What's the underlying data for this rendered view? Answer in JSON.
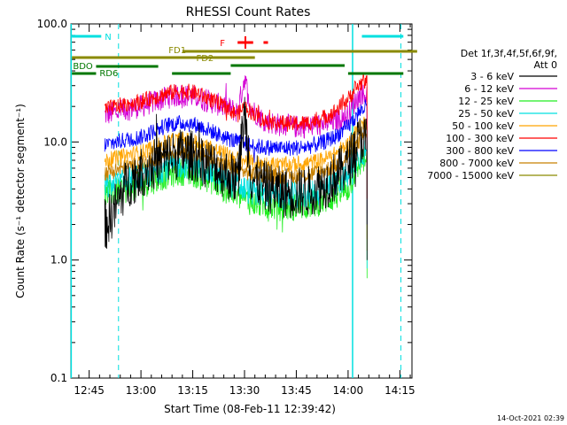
{
  "chart_data": {
    "type": "line",
    "title": "RHESSI Count Rates",
    "xlabel": "Start Time (08-Feb-11 12:39:42)",
    "ylabel": "Count Rate (s⁻¹ detector segment⁻¹)",
    "yscale": "log",
    "ylim": [
      0.1,
      100
    ],
    "y_ticks": [
      "0.1",
      "1.0",
      "10.0",
      "100.0"
    ],
    "xlim_minutes": [
      39.7,
      138.5
    ],
    "x_ticks": [
      {
        "label": "12:45",
        "min": 45
      },
      {
        "label": "13:00",
        "min": 60
      },
      {
        "label": "13:15",
        "min": 75
      },
      {
        "label": "13:30",
        "min": 90
      },
      {
        "label": "13:45",
        "min": 105
      },
      {
        "label": "14:00",
        "min": 120
      },
      {
        "label": "14:15",
        "min": 135
      }
    ],
    "data_window_minutes": [
      49.5,
      125.5
    ],
    "legend": {
      "title_lines": [
        "Det 1f,3f,4f,5f,6f,9f,",
        "Att 0"
      ],
      "placement": "outside-right"
    },
    "series": [
      {
        "name": "3 - 6 keV",
        "color": "#000000",
        "x": [
          50,
          53,
          56,
          60,
          64,
          68,
          72,
          76,
          80,
          84,
          88,
          90,
          92,
          96,
          100,
          104,
          108,
          112,
          116,
          120,
          122,
          124,
          125.5
        ],
        "y": [
          2.0,
          3.0,
          4.5,
          5.5,
          6.5,
          7.5,
          8.0,
          7.5,
          6.5,
          5.5,
          4.8,
          18,
          5.0,
          4.2,
          3.8,
          3.7,
          3.8,
          4.2,
          5.0,
          6.5,
          9.0,
          11.0,
          10.0
        ]
      },
      {
        "name": "6 - 12 keV",
        "color": "#d400d4",
        "x": [
          50,
          53,
          56,
          60,
          64,
          68,
          72,
          76,
          80,
          84,
          88,
          90,
          92,
          96,
          100,
          104,
          108,
          112,
          116,
          120,
          122,
          124,
          125.5
        ],
        "y": [
          17,
          18,
          19,
          20,
          22,
          24,
          25,
          24,
          22,
          20,
          18,
          35,
          19,
          15,
          14,
          13.5,
          13.5,
          14,
          15,
          17,
          22,
          26,
          25
        ]
      },
      {
        "name": "12 - 25 keV",
        "color": "#22ee22",
        "x": [
          50,
          53,
          56,
          60,
          64,
          68,
          72,
          76,
          80,
          84,
          88,
          92,
          96,
          100,
          104,
          108,
          112,
          116,
          120,
          122,
          124,
          125.5
        ],
        "y": [
          3.6,
          3.8,
          4.0,
          4.3,
          4.8,
          5.3,
          5.6,
          5.3,
          4.8,
          4.0,
          3.5,
          3.1,
          2.9,
          2.8,
          2.8,
          2.9,
          3.1,
          3.4,
          4.0,
          5.5,
          7.0,
          7.0
        ]
      },
      {
        "name": "25 - 50 keV",
        "color": "#00e0e0",
        "x": [
          50,
          53,
          56,
          60,
          64,
          68,
          72,
          76,
          80,
          84,
          88,
          92,
          96,
          100,
          104,
          108,
          112,
          116,
          120,
          122,
          124,
          125.5
        ],
        "y": [
          4.2,
          4.4,
          4.7,
          5.0,
          5.6,
          6.2,
          6.5,
          6.2,
          5.6,
          4.8,
          4.2,
          3.8,
          3.6,
          3.5,
          3.5,
          3.6,
          3.8,
          4.3,
          5.2,
          6.5,
          8.0,
          8.5
        ]
      },
      {
        "name": "50 - 100 keV",
        "color": "#ffa500",
        "x": [
          50,
          53,
          56,
          60,
          64,
          68,
          72,
          76,
          80,
          84,
          88,
          92,
          96,
          100,
          104,
          108,
          112,
          116,
          120,
          122,
          124,
          125.5
        ],
        "y": [
          7.0,
          7.3,
          7.7,
          8.2,
          9.0,
          10.0,
          10.5,
          10.0,
          9.0,
          8.0,
          7.2,
          6.7,
          6.5,
          6.4,
          6.4,
          6.6,
          7.0,
          7.8,
          9.5,
          11.5,
          14.0,
          15.0
        ]
      },
      {
        "name": "100 - 300 keV",
        "color": "#ff0000",
        "x": [
          50,
          53,
          56,
          60,
          64,
          68,
          72,
          76,
          80,
          84,
          88,
          90,
          92,
          96,
          100,
          104,
          108,
          112,
          116,
          120,
          122,
          124,
          125.5
        ],
        "y": [
          19,
          20,
          21,
          22,
          24,
          26,
          27,
          26,
          23,
          20,
          17,
          20,
          18,
          15,
          14.5,
          14.2,
          14.5,
          15.5,
          18,
          23,
          28,
          32,
          33
        ]
      },
      {
        "name": "300 - 800 keV",
        "color": "#0000ff",
        "x": [
          50,
          53,
          56,
          60,
          64,
          68,
          72,
          76,
          80,
          84,
          88,
          92,
          96,
          100,
          104,
          108,
          112,
          116,
          120,
          122,
          124,
          125.5
        ],
        "y": [
          9.5,
          10.0,
          10.5,
          11.0,
          12.5,
          14.0,
          14.5,
          14.0,
          12.5,
          11.0,
          10.0,
          9.3,
          9.0,
          8.9,
          8.9,
          9.1,
          9.7,
          11.0,
          13.5,
          16.0,
          19.0,
          20.0
        ]
      },
      {
        "name": "800 - 7000 keV",
        "color": "#c88000",
        "x": [
          50,
          53,
          56,
          60,
          64,
          68,
          72,
          76,
          80,
          84,
          88,
          92,
          96,
          100,
          104,
          108,
          112,
          116,
          120,
          122,
          124,
          125.5
        ],
        "y": [
          5.5,
          5.8,
          6.1,
          6.5,
          7.2,
          8.0,
          8.4,
          8.0,
          7.2,
          6.4,
          5.8,
          5.4,
          5.2,
          5.1,
          5.1,
          5.2,
          5.6,
          6.2,
          7.5,
          9.0,
          11.0,
          12.0
        ]
      },
      {
        "name": "7000 - 15000 keV",
        "color": "#8a8a00",
        "x": [],
        "y": []
      }
    ],
    "annotations": {
      "night_segments": [
        {
          "label": "N",
          "x0": 40,
          "x1": 48.5,
          "label_at": 49.5
        },
        {
          "label": "",
          "x0": 124,
          "x1": 136,
          "label_at": null
        }
      ],
      "night_vlines_solid": [
        39.8,
        121.3
      ],
      "night_vlines_dashed": [
        53.5,
        135.3
      ],
      "flare_marks": [
        {
          "label": "F",
          "x0": 88,
          "x1": 92.5
        },
        {
          "label": "",
          "x0": 95.5,
          "x1": 96.8
        }
      ],
      "fd_segments": [
        {
          "label": "FD1",
          "x0": 40,
          "x1": 93,
          "label_at": 68
        },
        {
          "label": "FD2",
          "x0": 72,
          "x1": 140,
          "label_at": 76
        }
      ],
      "rd_segments": [
        {
          "label": "RD6",
          "x0": 47,
          "x1": 65,
          "label_at": 48
        },
        {
          "label": "",
          "x0": 69,
          "x1": 86
        },
        {
          "label": "",
          "x0": 86,
          "x1": 119
        },
        {
          "label": "",
          "x0": 120,
          "x1": 136
        }
      ],
      "bdo_segments": [
        {
          "label": "BDO",
          "x0": 40,
          "x1": 47,
          "label_at": 40.3
        }
      ]
    }
  },
  "timestamp": "14-Oct-2021 02:39"
}
